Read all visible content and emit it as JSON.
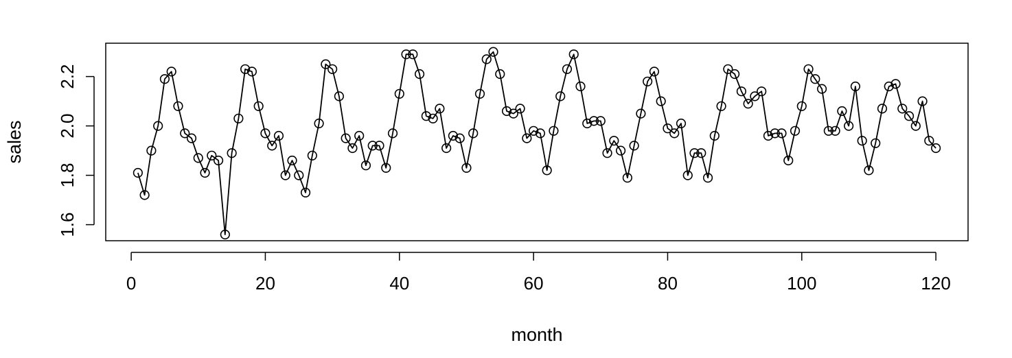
{
  "chart_data": {
    "type": "line",
    "title": "",
    "xlabel": "month",
    "ylabel": "sales",
    "xlim": [
      -3.8,
      124.8
    ],
    "ylim": [
      1.535,
      2.335
    ],
    "x_ticks": [
      0,
      20,
      40,
      60,
      80,
      100,
      120
    ],
    "y_ticks": [
      1.6,
      1.8,
      2.0,
      2.2
    ],
    "x_tick_labels": [
      "0",
      "20",
      "40",
      "60",
      "80",
      "100",
      "120"
    ],
    "y_tick_labels": [
      "1.6",
      "1.8",
      "2.0",
      "2.2"
    ],
    "grid": false,
    "markers": "open-circle",
    "line_color": "#000000",
    "x": [
      1,
      2,
      3,
      4,
      5,
      6,
      7,
      8,
      9,
      10,
      11,
      12,
      13,
      14,
      15,
      16,
      17,
      18,
      19,
      20,
      21,
      22,
      23,
      24,
      25,
      26,
      27,
      28,
      29,
      30,
      31,
      32,
      33,
      34,
      35,
      36,
      37,
      38,
      39,
      40,
      41,
      42,
      43,
      44,
      45,
      46,
      47,
      48,
      49,
      50,
      51,
      52,
      53,
      54,
      55,
      56,
      57,
      58,
      59,
      60,
      61,
      62,
      63,
      64,
      65,
      66,
      67,
      68,
      69,
      70,
      71,
      72,
      73,
      74,
      75,
      76,
      77,
      78,
      79,
      80,
      81,
      82,
      83,
      84,
      85,
      86,
      87,
      88,
      89,
      90,
      91,
      92,
      93,
      94,
      95,
      96,
      97,
      98,
      99,
      100,
      101,
      102,
      103,
      104,
      105,
      106,
      107,
      108,
      109,
      110,
      111,
      112,
      113,
      114,
      115,
      116,
      117,
      118,
      119,
      120
    ],
    "values": [
      1.81,
      1.72,
      1.9,
      2.0,
      2.19,
      2.22,
      2.08,
      1.97,
      1.95,
      1.87,
      1.81,
      1.88,
      1.86,
      1.56,
      1.89,
      2.03,
      2.23,
      2.22,
      2.08,
      1.97,
      1.92,
      1.96,
      1.8,
      1.86,
      1.8,
      1.73,
      1.88,
      2.01,
      2.25,
      2.23,
      2.12,
      1.95,
      1.91,
      1.96,
      1.84,
      1.92,
      1.92,
      1.83,
      1.97,
      2.13,
      2.29,
      2.29,
      2.21,
      2.04,
      2.03,
      2.07,
      1.91,
      1.96,
      1.95,
      1.83,
      1.97,
      2.13,
      2.27,
      2.3,
      2.21,
      2.06,
      2.05,
      2.07,
      1.95,
      1.98,
      1.97,
      1.82,
      1.98,
      2.12,
      2.23,
      2.29,
      2.16,
      2.01,
      2.02,
      2.02,
      1.89,
      1.94,
      1.9,
      1.79,
      1.92,
      2.05,
      2.18,
      2.22,
      2.1,
      1.99,
      1.97,
      2.01,
      1.8,
      1.89,
      1.89,
      1.79,
      1.96,
      2.08,
      2.23,
      2.21,
      2.14,
      2.09,
      2.12,
      2.14,
      1.96,
      1.97,
      1.97,
      1.86,
      1.98,
      2.08,
      2.23,
      2.19,
      2.15,
      1.98,
      1.98,
      2.06,
      2.0,
      2.16,
      1.94,
      1.82,
      1.93,
      2.07,
      2.16,
      2.17,
      2.07,
      2.04,
      2.0,
      2.1,
      1.94,
      1.91
    ]
  }
}
